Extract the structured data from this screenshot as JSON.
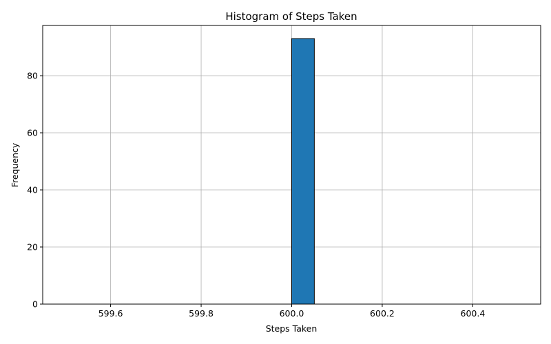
{
  "chart_data": {
    "type": "bar",
    "title": "Histogram of Steps Taken",
    "xlabel": "Steps Taken",
    "ylabel": "Frequency",
    "xlim": [
      599.45,
      600.55
    ],
    "ylim": [
      0,
      97.6
    ],
    "x_ticks": [
      599.6,
      599.8,
      600.0,
      600.2,
      600.4
    ],
    "x_tick_labels": [
      "599.6",
      "599.8",
      "600.0",
      "600.2",
      "600.4"
    ],
    "y_ticks": [
      0,
      20,
      40,
      60,
      80
    ],
    "y_tick_labels": [
      "0",
      "20",
      "40",
      "60",
      "80"
    ],
    "bins": [
      {
        "start": 599.5,
        "end": 599.55,
        "value": 0
      },
      {
        "start": 599.55,
        "end": 599.6,
        "value": 0
      },
      {
        "start": 599.6,
        "end": 599.65,
        "value": 0
      },
      {
        "start": 599.65,
        "end": 599.7,
        "value": 0
      },
      {
        "start": 599.7,
        "end": 599.75,
        "value": 0
      },
      {
        "start": 599.75,
        "end": 599.8,
        "value": 0
      },
      {
        "start": 599.8,
        "end": 599.85,
        "value": 0
      },
      {
        "start": 599.85,
        "end": 599.9,
        "value": 0
      },
      {
        "start": 599.9,
        "end": 599.95,
        "value": 0
      },
      {
        "start": 599.95,
        "end": 600.0,
        "value": 0
      },
      {
        "start": 600.0,
        "end": 600.05,
        "value": 93
      },
      {
        "start": 600.05,
        "end": 600.1,
        "value": 0
      },
      {
        "start": 600.1,
        "end": 600.15,
        "value": 0
      },
      {
        "start": 600.15,
        "end": 600.2,
        "value": 0
      },
      {
        "start": 600.2,
        "end": 600.25,
        "value": 0
      },
      {
        "start": 600.25,
        "end": 600.3,
        "value": 0
      },
      {
        "start": 600.3,
        "end": 600.35,
        "value": 0
      },
      {
        "start": 600.35,
        "end": 600.4,
        "value": 0
      },
      {
        "start": 600.4,
        "end": 600.45,
        "value": 0
      },
      {
        "start": 600.45,
        "end": 600.5,
        "value": 0
      }
    ],
    "grid": true,
    "colors": {
      "bar": "#1f77b4",
      "edge": "#000000",
      "grid": "#b0b0b0"
    }
  }
}
